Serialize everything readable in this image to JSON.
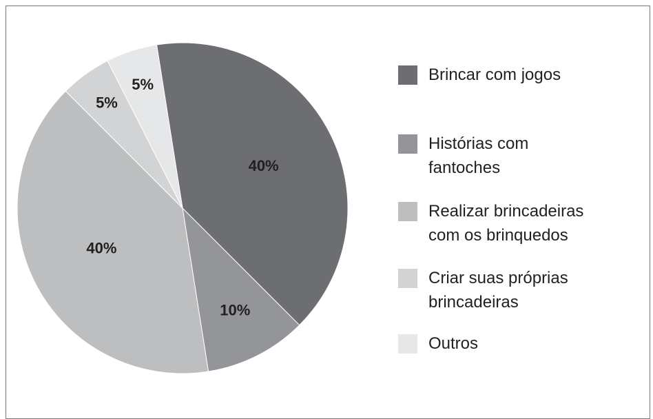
{
  "chart_data": {
    "type": "pie",
    "categories": [
      "Brincar com jogos",
      "Histórias com fantoches",
      "Realizar brincadeiras com os brinquedos",
      "Criar suas próprias brincadeiras",
      "Outros"
    ],
    "values": [
      40,
      10,
      40,
      5,
      5
    ],
    "value_labels": [
      "40%",
      "10%",
      "40%",
      "5%",
      "5%"
    ],
    "colors": [
      "#6d6e71",
      "#939598",
      "#bcbec0",
      "#d1d3d4",
      "#e6e7e8"
    ],
    "legend": "right"
  }
}
